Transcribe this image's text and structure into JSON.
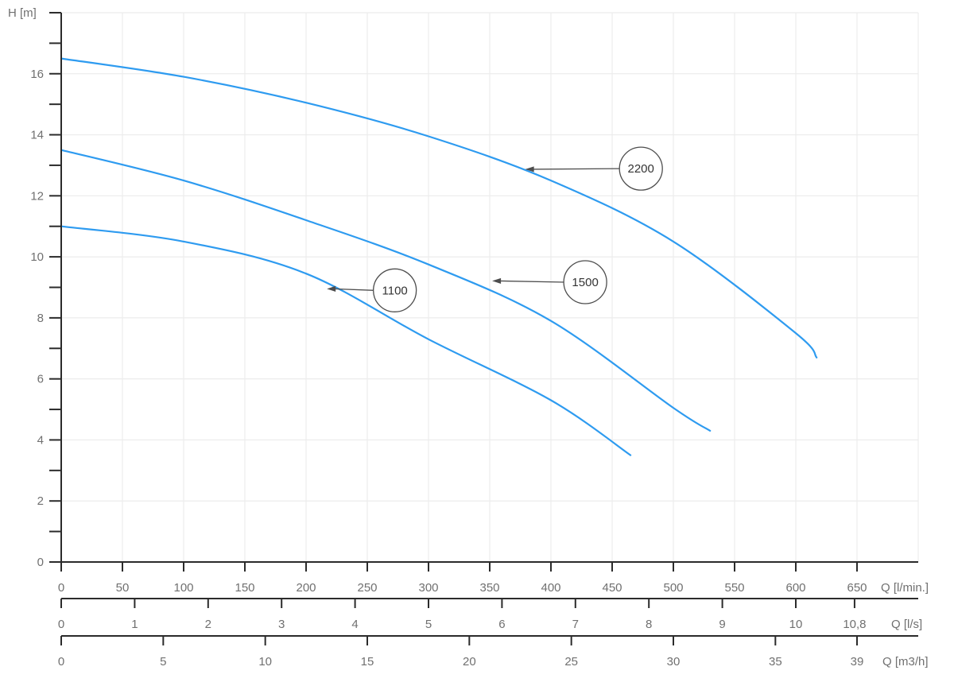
{
  "chart_data": {
    "type": "line",
    "title": "",
    "ylabel": "H [m]",
    "xlabel": "Q [l/min.]",
    "grid": true,
    "y_axis": {
      "label": "H [m]",
      "min": 0,
      "max": 18,
      "minor_step": 1,
      "label_step": 2,
      "tick_labels": [
        "0",
        "2",
        "4",
        "6",
        "8",
        "10",
        "12",
        "14",
        "16"
      ]
    },
    "x_max_lmin": 700,
    "x_axes": [
      {
        "label": "Q [l/min.]",
        "to_lmin": 1,
        "ticks": [
          0,
          50,
          100,
          150,
          200,
          250,
          300,
          350,
          400,
          450,
          500,
          550,
          600,
          650
        ],
        "tick_labels": [
          "0",
          "50",
          "100",
          "150",
          "200",
          "250",
          "300",
          "350",
          "400",
          "450",
          "500",
          "550",
          "600",
          "650"
        ]
      },
      {
        "label": "Q [l/s]",
        "to_lmin": 60,
        "ticks": [
          0,
          1,
          2,
          3,
          4,
          5,
          6,
          7,
          8,
          9,
          10,
          10.8
        ],
        "tick_labels": [
          "0",
          "1",
          "2",
          "3",
          "4",
          "5",
          "6",
          "7",
          "8",
          "9",
          "10",
          "10,8"
        ]
      },
      {
        "label": "Q [m3/h]",
        "to_lmin": 16.6667,
        "ticks": [
          0,
          5,
          10,
          15,
          20,
          25,
          30,
          35,
          39
        ],
        "tick_labels": [
          "0",
          "5",
          "10",
          "15",
          "20",
          "25",
          "30",
          "35",
          "39"
        ]
      }
    ],
    "series": [
      {
        "name": "1100",
        "points": [
          [
            0,
            11.0
          ],
          [
            100,
            10.5
          ],
          [
            200,
            9.45
          ],
          [
            300,
            7.3
          ],
          [
            400,
            5.3
          ],
          [
            465,
            3.5
          ]
        ]
      },
      {
        "name": "1500",
        "points": [
          [
            0,
            13.5
          ],
          [
            100,
            12.5
          ],
          [
            200,
            11.2
          ],
          [
            300,
            9.75
          ],
          [
            400,
            7.9
          ],
          [
            500,
            5.05
          ],
          [
            530,
            4.3
          ]
        ]
      },
      {
        "name": "2200",
        "points": [
          [
            0,
            16.5
          ],
          [
            100,
            15.9
          ],
          [
            200,
            15.05
          ],
          [
            300,
            13.95
          ],
          [
            400,
            12.5
          ],
          [
            500,
            10.5
          ],
          [
            600,
            7.5
          ],
          [
            617,
            6.7
          ]
        ]
      }
    ],
    "annotations": [
      {
        "label": "1100",
        "tip_q": 217,
        "tip_h": 8.95,
        "circle_q": 272.5,
        "circle_h": 8.9
      },
      {
        "label": "1500",
        "tip_q": 352,
        "tip_h": 9.21,
        "circle_q": 428.0,
        "circle_h": 9.17
      },
      {
        "label": "2200",
        "tip_q": 379,
        "tip_h": 12.87,
        "circle_q": 473.5,
        "circle_h": 12.89
      }
    ],
    "colors": {
      "curve": "#2e9bf0",
      "axis": "#2b2b2b",
      "grid": "#ececec",
      "tick_label": "#707070",
      "annotation_stroke": "#4d4d4d",
      "annotation_text": "#333333",
      "background": "#ffffff"
    }
  }
}
